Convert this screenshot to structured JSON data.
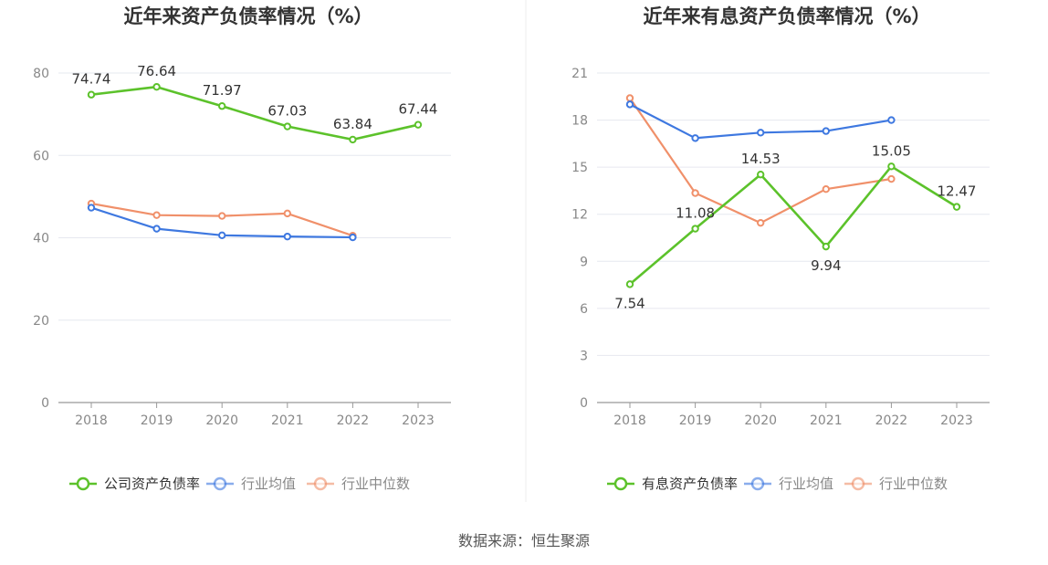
{
  "source_label": "数据来源：恒生聚源",
  "chart_data": [
    {
      "type": "line",
      "title": "近年来资产负债率情况（%）",
      "categories": [
        "2018",
        "2019",
        "2020",
        "2021",
        "2022",
        "2023"
      ],
      "ylim": [
        0,
        80
      ],
      "yticks": [
        0,
        20,
        40,
        60,
        80
      ],
      "grid": true,
      "legend_position": "bottom",
      "series": [
        {
          "name": "公司资产负债率",
          "color": "#5cc22b",
          "labels": true,
          "values": [
            74.74,
            76.64,
            71.97,
            67.03,
            63.84,
            67.44
          ]
        },
        {
          "name": "行业均值",
          "color": "#3e78e0",
          "labels": false,
          "values": [
            47.3,
            42.2,
            40.6,
            40.3,
            40.1,
            null
          ]
        },
        {
          "name": "行业中位数",
          "color": "#f0906a",
          "labels": false,
          "values": [
            48.3,
            45.5,
            45.3,
            45.9,
            40.5,
            null
          ]
        }
      ]
    },
    {
      "type": "line",
      "title": "近年来有息资产负债率情况（%）",
      "categories": [
        "2018",
        "2019",
        "2020",
        "2021",
        "2022",
        "2023"
      ],
      "ylim": [
        0,
        21
      ],
      "yticks": [
        0,
        3,
        6,
        9,
        12,
        15,
        18,
        21
      ],
      "grid": true,
      "legend_position": "bottom",
      "series": [
        {
          "name": "有息资产负债率",
          "color": "#5cc22b",
          "labels": true,
          "values": [
            7.54,
            11.08,
            14.53,
            9.94,
            15.05,
            12.47
          ]
        },
        {
          "name": "行业均值",
          "color": "#3e78e0",
          "labels": false,
          "values": [
            19.0,
            16.85,
            17.2,
            17.3,
            18.0,
            null
          ]
        },
        {
          "name": "行业中位数",
          "color": "#f0906a",
          "labels": false,
          "values": [
            19.4,
            13.35,
            11.45,
            13.6,
            14.25,
            null
          ]
        }
      ]
    }
  ]
}
